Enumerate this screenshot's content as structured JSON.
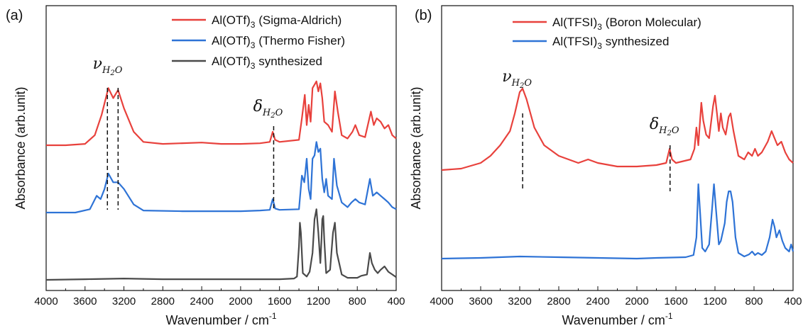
{
  "chart_data": [
    {
      "type": "line",
      "panel_label": "(a)",
      "xlabel": "Wavenumber / cm",
      "xlabel_sup": "-1",
      "ylabel": "Absorbance (arb.unit)",
      "xlim": [
        4000,
        400
      ],
      "x_ticks": [
        "4000",
        "3600",
        "3200",
        "2800",
        "2400",
        "2000",
        "1600",
        "1200",
        "800",
        "400"
      ],
      "y_ticks_labeled": false,
      "legend_position": "top-right",
      "series": [
        {
          "name": "Al(OTf)3 (Sigma-Aldrich)",
          "legend_main": "Al(OTf)",
          "legend_sub": "3",
          "legend_rest": " (Sigma-Aldrich)",
          "color": "#e8413c",
          "offset": 2.0,
          "points": [
            [
              4000,
              0.0
            ],
            [
              3800,
              0.0
            ],
            [
              3600,
              0.02
            ],
            [
              3500,
              0.15
            ],
            [
              3430,
              0.45
            ],
            [
              3360,
              0.85
            ],
            [
              3310,
              0.7
            ],
            [
              3260,
              0.82
            ],
            [
              3200,
              0.55
            ],
            [
              3100,
              0.2
            ],
            [
              3000,
              0.05
            ],
            [
              2800,
              0.02
            ],
            [
              2400,
              0.04
            ],
            [
              2200,
              0.02
            ],
            [
              2000,
              0.02
            ],
            [
              1800,
              0.03
            ],
            [
              1700,
              0.05
            ],
            [
              1670,
              0.2
            ],
            [
              1645,
              0.08
            ],
            [
              1600,
              0.05
            ],
            [
              1400,
              0.08
            ],
            [
              1370,
              0.4
            ],
            [
              1340,
              0.75
            ],
            [
              1320,
              0.3
            ],
            [
              1300,
              0.6
            ],
            [
              1280,
              0.35
            ],
            [
              1260,
              0.85
            ],
            [
              1240,
              0.9
            ],
            [
              1220,
              0.95
            ],
            [
              1200,
              0.8
            ],
            [
              1180,
              0.92
            ],
            [
              1160,
              0.7
            ],
            [
              1140,
              0.35
            ],
            [
              1100,
              0.3
            ],
            [
              1060,
              0.2
            ],
            [
              1030,
              0.8
            ],
            [
              1000,
              0.5
            ],
            [
              960,
              0.15
            ],
            [
              900,
              0.1
            ],
            [
              850,
              0.2
            ],
            [
              820,
              0.3
            ],
            [
              780,
              0.15
            ],
            [
              720,
              0.12
            ],
            [
              660,
              0.5
            ],
            [
              630,
              0.3
            ],
            [
              600,
              0.4
            ],
            [
              560,
              0.35
            ],
            [
              520,
              0.25
            ],
            [
              480,
              0.3
            ],
            [
              440,
              0.15
            ],
            [
              400,
              0.1
            ]
          ]
        },
        {
          "name": "Al(OTf)3 (Thermo Fisher)",
          "legend_main": "Al(OTf)",
          "legend_sub": "3",
          "legend_rest": " (Thermo Fisher)",
          "color": "#2e73d6",
          "offset": 1.0,
          "points": [
            [
              4000,
              0.0
            ],
            [
              3700,
              0.0
            ],
            [
              3550,
              0.05
            ],
            [
              3480,
              0.25
            ],
            [
              3440,
              0.2
            ],
            [
              3400,
              0.35
            ],
            [
              3360,
              0.58
            ],
            [
              3310,
              0.45
            ],
            [
              3260,
              0.45
            ],
            [
              3200,
              0.35
            ],
            [
              3100,
              0.12
            ],
            [
              3000,
              0.03
            ],
            [
              2600,
              0.02
            ],
            [
              2000,
              0.02
            ],
            [
              1800,
              0.03
            ],
            [
              1700,
              0.04
            ],
            [
              1670,
              0.2
            ],
            [
              1645,
              0.06
            ],
            [
              1600,
              0.04
            ],
            [
              1400,
              0.05
            ],
            [
              1370,
              0.55
            ],
            [
              1345,
              0.45
            ],
            [
              1320,
              0.8
            ],
            [
              1300,
              0.35
            ],
            [
              1280,
              0.2
            ],
            [
              1260,
              0.8
            ],
            [
              1240,
              0.85
            ],
            [
              1220,
              1.05
            ],
            [
              1200,
              0.9
            ],
            [
              1180,
              0.95
            ],
            [
              1160,
              0.5
            ],
            [
              1140,
              0.3
            ],
            [
              1120,
              0.5
            ],
            [
              1100,
              0.25
            ],
            [
              1060,
              0.2
            ],
            [
              1040,
              0.8
            ],
            [
              1010,
              0.4
            ],
            [
              960,
              0.15
            ],
            [
              900,
              0.08
            ],
            [
              860,
              0.15
            ],
            [
              820,
              0.2
            ],
            [
              780,
              0.15
            ],
            [
              720,
              0.12
            ],
            [
              670,
              0.5
            ],
            [
              640,
              0.25
            ],
            [
              600,
              0.3
            ],
            [
              560,
              0.25
            ],
            [
              520,
              0.2
            ],
            [
              480,
              0.15
            ],
            [
              440,
              0.08
            ],
            [
              400,
              0.05
            ]
          ]
        },
        {
          "name": "Al(OTf)3 synthesized",
          "legend_main": "Al(OTf)",
          "legend_sub": "3",
          "legend_rest": " synthesized",
          "color": "#4a4a4a",
          "offset": 0.0,
          "points": [
            [
              4000,
              0.0
            ],
            [
              3600,
              0.01
            ],
            [
              3200,
              0.02
            ],
            [
              2800,
              0.01
            ],
            [
              2400,
              0.01
            ],
            [
              2000,
              0.01
            ],
            [
              1600,
              0.01
            ],
            [
              1450,
              0.02
            ],
            [
              1420,
              0.05
            ],
            [
              1400,
              0.5
            ],
            [
              1390,
              0.85
            ],
            [
              1380,
              0.7
            ],
            [
              1360,
              0.1
            ],
            [
              1320,
              0.05
            ],
            [
              1290,
              0.12
            ],
            [
              1260,
              0.4
            ],
            [
              1240,
              0.9
            ],
            [
              1220,
              1.05
            ],
            [
              1200,
              0.7
            ],
            [
              1180,
              0.25
            ],
            [
              1170,
              0.55
            ],
            [
              1160,
              0.9
            ],
            [
              1150,
              0.95
            ],
            [
              1140,
              0.6
            ],
            [
              1120,
              0.1
            ],
            [
              1080,
              0.15
            ],
            [
              1050,
              0.7
            ],
            [
              1030,
              0.85
            ],
            [
              1010,
              0.4
            ],
            [
              960,
              0.08
            ],
            [
              900,
              0.03
            ],
            [
              800,
              0.03
            ],
            [
              760,
              0.06
            ],
            [
              700,
              0.08
            ],
            [
              670,
              0.4
            ],
            [
              650,
              0.25
            ],
            [
              620,
              0.15
            ],
            [
              590,
              0.1
            ],
            [
              560,
              0.15
            ],
            [
              520,
              0.2
            ],
            [
              480,
              0.12
            ],
            [
              440,
              0.08
            ],
            [
              400,
              0.04
            ]
          ]
        }
      ],
      "annotations": [
        {
          "symbol": "ν",
          "sub": "H",
          "subsub": "2",
          "subrest": "O",
          "x": 3310,
          "lines_at": [
            3370,
            3260
          ]
        },
        {
          "symbol": "δ",
          "sub": "H",
          "subsub": "2",
          "subrest": "O",
          "x": 1660,
          "lines_at": [
            1660
          ]
        }
      ]
    },
    {
      "type": "line",
      "panel_label": "(b)",
      "xlabel": "Wavenumber / cm",
      "xlabel_sup": "-1",
      "ylabel": "Absorbance (arb.unit)",
      "xlim": [
        4000,
        400
      ],
      "x_ticks": [
        "4000",
        "3600",
        "3200",
        "2800",
        "2400",
        "2000",
        "1600",
        "1200",
        "800",
        "400"
      ],
      "y_ticks_labeled": false,
      "legend_position": "top-center",
      "series": [
        {
          "name": "Al(TFSI)3 (Boron Molecular)",
          "legend_main": "Al(TFSI)",
          "legend_sub": "3",
          "legend_rest": " (Boron Molecular)",
          "color": "#e8413c",
          "offset": 1.25,
          "points": [
            [
              4000,
              0.0
            ],
            [
              3800,
              0.02
            ],
            [
              3600,
              0.1
            ],
            [
              3500,
              0.2
            ],
            [
              3400,
              0.35
            ],
            [
              3300,
              0.55
            ],
            [
              3250,
              0.8
            ],
            [
              3200,
              1.1
            ],
            [
              3170,
              1.15
            ],
            [
              3130,
              1.0
            ],
            [
              3050,
              0.6
            ],
            [
              2950,
              0.35
            ],
            [
              2800,
              0.2
            ],
            [
              2600,
              0.1
            ],
            [
              2500,
              0.15
            ],
            [
              2400,
              0.1
            ],
            [
              2200,
              0.05
            ],
            [
              2000,
              0.05
            ],
            [
              1800,
              0.07
            ],
            [
              1700,
              0.1
            ],
            [
              1665,
              0.3
            ],
            [
              1640,
              0.15
            ],
            [
              1600,
              0.1
            ],
            [
              1450,
              0.15
            ],
            [
              1410,
              0.3
            ],
            [
              1390,
              0.6
            ],
            [
              1370,
              0.35
            ],
            [
              1340,
              0.95
            ],
            [
              1320,
              0.7
            ],
            [
              1290,
              0.5
            ],
            [
              1260,
              0.45
            ],
            [
              1220,
              0.9
            ],
            [
              1200,
              1.05
            ],
            [
              1180,
              0.8
            ],
            [
              1160,
              0.55
            ],
            [
              1140,
              0.8
            ],
            [
              1120,
              0.6
            ],
            [
              1090,
              0.5
            ],
            [
              1060,
              0.75
            ],
            [
              1040,
              0.8
            ],
            [
              1010,
              0.55
            ],
            [
              960,
              0.2
            ],
            [
              900,
              0.15
            ],
            [
              860,
              0.25
            ],
            [
              820,
              0.2
            ],
            [
              790,
              0.3
            ],
            [
              760,
              0.2
            ],
            [
              720,
              0.25
            ],
            [
              660,
              0.4
            ],
            [
              620,
              0.55
            ],
            [
              590,
              0.45
            ],
            [
              560,
              0.35
            ],
            [
              520,
              0.4
            ],
            [
              480,
              0.25
            ],
            [
              440,
              0.15
            ],
            [
              400,
              0.1
            ]
          ]
        },
        {
          "name": "Al(TFSI)3 synthesized",
          "legend_main": "Al(TFSI)",
          "legend_sub": "3",
          "legend_rest": " synthesized",
          "color": "#2e73d6",
          "offset": 0.0,
          "points": [
            [
              4000,
              0.0
            ],
            [
              3600,
              0.01
            ],
            [
              3200,
              0.03
            ],
            [
              2800,
              0.02
            ],
            [
              2400,
              0.01
            ],
            [
              2000,
              0.0
            ],
            [
              1800,
              0.01
            ],
            [
              1500,
              0.02
            ],
            [
              1420,
              0.05
            ],
            [
              1390,
              0.3
            ],
            [
              1370,
              1.05
            ],
            [
              1350,
              0.6
            ],
            [
              1330,
              0.15
            ],
            [
              1300,
              0.1
            ],
            [
              1260,
              0.2
            ],
            [
              1230,
              0.7
            ],
            [
              1210,
              1.05
            ],
            [
              1190,
              0.7
            ],
            [
              1160,
              0.2
            ],
            [
              1140,
              0.25
            ],
            [
              1100,
              0.5
            ],
            [
              1080,
              0.8
            ],
            [
              1060,
              0.95
            ],
            [
              1040,
              0.95
            ],
            [
              1020,
              0.8
            ],
            [
              990,
              0.3
            ],
            [
              960,
              0.08
            ],
            [
              900,
              0.03
            ],
            [
              850,
              0.06
            ],
            [
              820,
              0.1
            ],
            [
              790,
              0.05
            ],
            [
              760,
              0.08
            ],
            [
              720,
              0.05
            ],
            [
              680,
              0.1
            ],
            [
              640,
              0.3
            ],
            [
              610,
              0.55
            ],
            [
              590,
              0.45
            ],
            [
              570,
              0.3
            ],
            [
              540,
              0.4
            ],
            [
              510,
              0.25
            ],
            [
              480,
              0.15
            ],
            [
              440,
              0.1
            ],
            [
              420,
              0.2
            ],
            [
              400,
              0.1
            ]
          ]
        }
      ],
      "annotations": [
        {
          "symbol": "ν",
          "sub": "H",
          "subsub": "2",
          "subrest": "O",
          "x": 3170,
          "lines_at": [
            3170
          ]
        },
        {
          "symbol": "δ",
          "sub": "H",
          "subsub": "2",
          "subrest": "O",
          "x": 1660,
          "lines_at": [
            1660
          ]
        }
      ]
    }
  ]
}
